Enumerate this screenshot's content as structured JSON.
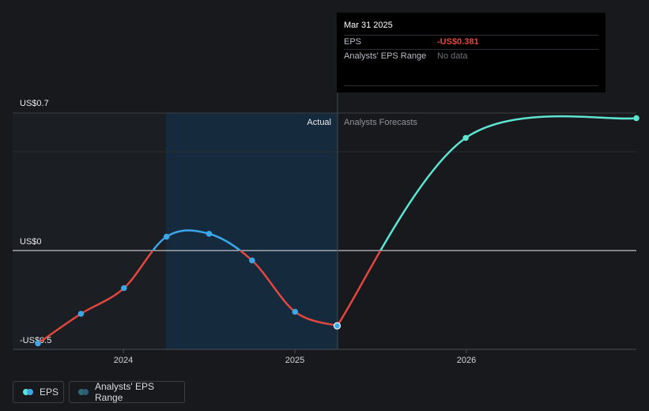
{
  "chart_data": {
    "type": "line",
    "y_labels": [
      "US$0.7",
      "US$0",
      "-US$0.5"
    ],
    "x_ticks": [
      "2024",
      "2025",
      "2026"
    ],
    "section_labels": {
      "actual": "Actual",
      "forecast": "Analysts Forecasts"
    },
    "ylim": [
      -0.5,
      0.7
    ],
    "x_range": [
      "2023-06-30",
      "2026-12-31"
    ],
    "series": [
      {
        "name": "EPS",
        "kind": "actual",
        "points": [
          {
            "x": "2023-06-30",
            "y": -0.47
          },
          {
            "x": "2023-09-30",
            "y": -0.32
          },
          {
            "x": "2023-12-31",
            "y": -0.19
          },
          {
            "x": "2024-03-31",
            "y": 0.07
          },
          {
            "x": "2024-06-30",
            "y": 0.085
          },
          {
            "x": "2024-09-30",
            "y": -0.05
          },
          {
            "x": "2024-12-31",
            "y": -0.31
          },
          {
            "x": "2025-03-31",
            "y": -0.381
          }
        ]
      },
      {
        "name": "EPS",
        "kind": "forecast",
        "points": [
          {
            "x": "2025-03-31",
            "y": -0.381
          },
          {
            "x": "2025-12-31",
            "y": 0.57
          },
          {
            "x": "2026-12-31",
            "y": 0.67
          }
        ]
      }
    ]
  },
  "tooltip": {
    "date": "Mar 31 2025",
    "rows": [
      {
        "key": "EPS",
        "value": "-US$0.381"
      },
      {
        "key": "Analysts' EPS Range",
        "value": "No data"
      }
    ]
  },
  "legend": {
    "eps": "EPS",
    "range": "Analysts' EPS Range"
  },
  "colors": {
    "positive": "#3ba6e8",
    "negative": "#e2473f",
    "forecast": "#5fe3d1",
    "highlight_band": "#152a3d"
  }
}
